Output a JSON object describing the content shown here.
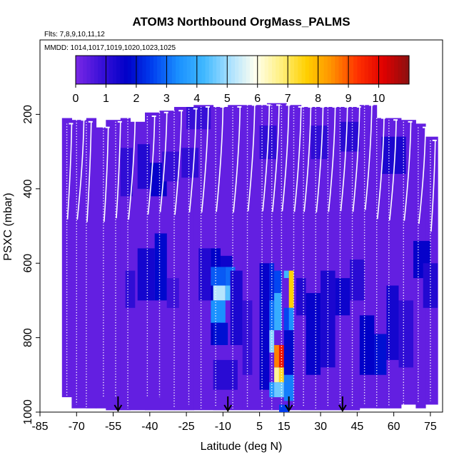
{
  "chart_data": {
    "type": "heatmap",
    "title": "ATOM3 Northbound OrgMass_PALMS",
    "flights_label": "Flts: 7,8,9,10,11,12",
    "dates_label": "MMDD: 1014,1017,1019,1020,1023,1025",
    "xlabel": "Latitude (deg N)",
    "ylabel": "PSXC (mbar)",
    "xlim": [
      -85,
      80
    ],
    "ylim": [
      1000,
      0
    ],
    "x_ticks": [
      -85,
      -70,
      -55,
      -40,
      -25,
      -10,
      5,
      15,
      30,
      45,
      60,
      75
    ],
    "y_ticks": [
      200,
      400,
      600,
      800,
      1000
    ],
    "colorbar": {
      "min": 0,
      "max": 11,
      "ticks": [
        0,
        1,
        2,
        3,
        4,
        5,
        6,
        7,
        8,
        9,
        10
      ],
      "colors": [
        "#7a28e6",
        "#3a10d8",
        "#0000c8",
        "#0040f0",
        "#1a90ff",
        "#40b8ff",
        "#a8e0ff",
        "#fffff0",
        "#fff080",
        "#ffd000",
        "#ff9000",
        "#ff3000",
        "#e00000",
        "#8a1010"
      ]
    },
    "background_value": 0.3,
    "cells": [
      {
        "x": [
          -52,
          -47
        ],
        "p": [
          290,
          420
        ],
        "v": 1.0
      },
      {
        "x": [
          -45,
          -40
        ],
        "p": [
          280,
          400
        ],
        "v": 1.2
      },
      {
        "x": [
          -40,
          -33
        ],
        "p": [
          330,
          420
        ],
        "v": 1.6
      },
      {
        "x": [
          -35,
          -28
        ],
        "p": [
          300,
          380
        ],
        "v": 0.9
      },
      {
        "x": [
          -27,
          -20
        ],
        "p": [
          290,
          370
        ],
        "v": 1.0
      },
      {
        "x": [
          -45,
          -38
        ],
        "p": [
          560,
          700
        ],
        "v": 1.4
      },
      {
        "x": [
          -38,
          -33
        ],
        "p": [
          520,
          700
        ],
        "v": 1.8
      },
      {
        "x": [
          -50,
          -46
        ],
        "p": [
          620,
          720
        ],
        "v": 1.0
      },
      {
        "x": [
          -33,
          -28
        ],
        "p": [
          640,
          720
        ],
        "v": 0.8
      },
      {
        "x": [
          -20,
          -15
        ],
        "p": [
          560,
          700
        ],
        "v": 1.2
      },
      {
        "x": [
          -15,
          -11
        ],
        "p": [
          560,
          820
        ],
        "v": 1.7
      },
      {
        "x": [
          -11,
          -6
        ],
        "p": [
          580,
          700
        ],
        "v": 1.5
      },
      {
        "x": [
          -14,
          -9
        ],
        "p": [
          660,
          700
        ],
        "v": 5.2
      },
      {
        "x": [
          -9,
          -6
        ],
        "p": [
          660,
          700
        ],
        "v": 4.4
      },
      {
        "x": [
          -15,
          -9
        ],
        "p": [
          700,
          760
        ],
        "v": 3.4
      },
      {
        "x": [
          -15,
          -9
        ],
        "p": [
          610,
          660
        ],
        "v": 2.8
      },
      {
        "x": [
          -9,
          -5
        ],
        "p": [
          610,
          660
        ],
        "v": 3.0
      },
      {
        "x": [
          -14,
          -8
        ],
        "p": [
          760,
          820
        ],
        "v": 1.9
      },
      {
        "x": [
          -7,
          -2
        ],
        "p": [
          620,
          820
        ],
        "v": 1.3
      },
      {
        "x": [
          -14,
          -4
        ],
        "p": [
          860,
          940
        ],
        "v": 1.1
      },
      {
        "x": [
          -2,
          2
        ],
        "p": [
          700,
          900
        ],
        "v": 0.9
      },
      {
        "x": [
          5,
          9
        ],
        "p": [
          600,
          940
        ],
        "v": 1.6
      },
      {
        "x": [
          9,
          11
        ],
        "p": [
          600,
          700
        ],
        "v": 2.2
      },
      {
        "x": [
          9,
          11
        ],
        "p": [
          700,
          780
        ],
        "v": 3.0
      },
      {
        "x": [
          11,
          14
        ],
        "p": [
          620,
          680
        ],
        "v": 2.6
      },
      {
        "x": [
          11,
          14
        ],
        "p": [
          680,
          780
        ],
        "v": 4.0
      },
      {
        "x": [
          9,
          11
        ],
        "p": [
          780,
          840
        ],
        "v": 4.8
      },
      {
        "x": [
          11,
          13
        ],
        "p": [
          820,
          880
        ],
        "v": 8.6
      },
      {
        "x": [
          13,
          15
        ],
        "p": [
          820,
          880
        ],
        "v": 9.8
      },
      {
        "x": [
          11,
          13
        ],
        "p": [
          880,
          920
        ],
        "v": 6.6
      },
      {
        "x": [
          13,
          15
        ],
        "p": [
          880,
          920
        ],
        "v": 7.4
      },
      {
        "x": [
          9,
          11
        ],
        "p": [
          920,
          960
        ],
        "v": 3.6
      },
      {
        "x": [
          11,
          15
        ],
        "p": [
          920,
          960
        ],
        "v": 4.6
      },
      {
        "x": [
          15,
          17
        ],
        "p": [
          620,
          640
        ],
        "v": 4.2
      },
      {
        "x": [
          17,
          19
        ],
        "p": [
          620,
          720
        ],
        "v": 7.6
      },
      {
        "x": [
          15,
          17
        ],
        "p": [
          720,
          780
        ],
        "v": 2.6
      },
      {
        "x": [
          17,
          19
        ],
        "p": [
          720,
          780
        ],
        "v": 3.4
      },
      {
        "x": [
          15,
          19
        ],
        "p": [
          780,
          900
        ],
        "v": 1.8
      },
      {
        "x": [
          15,
          19
        ],
        "p": [
          900,
          970
        ],
        "v": 3.2
      },
      {
        "x": [
          13,
          17
        ],
        "p": [
          980,
          1000
        ],
        "v": 2.5
      },
      {
        "x": [
          20,
          24
        ],
        "p": [
          640,
          740
        ],
        "v": 1.2
      },
      {
        "x": [
          24,
          30
        ],
        "p": [
          680,
          900
        ],
        "v": 1.6
      },
      {
        "x": [
          30,
          36
        ],
        "p": [
          620,
          880
        ],
        "v": 1.3
      },
      {
        "x": [
          36,
          42
        ],
        "p": [
          640,
          740
        ],
        "v": 1.5
      },
      {
        "x": [
          42,
          48
        ],
        "p": [
          590,
          700
        ],
        "v": 1.1
      },
      {
        "x": [
          46,
          52
        ],
        "p": [
          740,
          900
        ],
        "v": 1.7
      },
      {
        "x": [
          52,
          57
        ],
        "p": [
          790,
          900
        ],
        "v": 1.9
      },
      {
        "x": [
          57,
          62
        ],
        "p": [
          660,
          860
        ],
        "v": 1.4
      },
      {
        "x": [
          62,
          68
        ],
        "p": [
          700,
          880
        ],
        "v": 1.0
      },
      {
        "x": [
          68,
          75
        ],
        "p": [
          540,
          640
        ],
        "v": 1.6
      },
      {
        "x": [
          72,
          78
        ],
        "p": [
          600,
          720
        ],
        "v": 1.2
      },
      {
        "x": [
          26,
          33
        ],
        "p": [
          230,
          320
        ],
        "v": 1.0
      },
      {
        "x": [
          38,
          46
        ],
        "p": [
          220,
          300
        ],
        "v": 1.1
      },
      {
        "x": [
          55,
          65
        ],
        "p": [
          260,
          360
        ],
        "v": 1.3
      },
      {
        "x": [
          5,
          12
        ],
        "p": [
          230,
          320
        ],
        "v": 1.0
      },
      {
        "x": [
          -25,
          -15
        ],
        "p": [
          180,
          240
        ],
        "v": 0.9
      }
    ],
    "coverage": [
      {
        "x": [
          -76,
          -72
        ],
        "p": [
          210,
          960
        ]
      },
      {
        "x": [
          -72,
          -66
        ],
        "p": [
          215,
          990
        ]
      },
      {
        "x": [
          -66,
          -62
        ],
        "p": [
          210,
          990
        ]
      },
      {
        "x": [
          -62,
          -58
        ],
        "p": [
          235,
          990
        ]
      },
      {
        "x": [
          -58,
          -52
        ],
        "p": [
          215,
          995
        ]
      },
      {
        "x": [
          -52,
          -48
        ],
        "p": [
          210,
          995
        ]
      },
      {
        "x": [
          -48,
          -42
        ],
        "p": [
          220,
          995
        ]
      },
      {
        "x": [
          -42,
          -36
        ],
        "p": [
          195,
          995
        ]
      },
      {
        "x": [
          -36,
          -30
        ],
        "p": [
          190,
          995
        ]
      },
      {
        "x": [
          -30,
          -22
        ],
        "p": [
          180,
          995
        ]
      },
      {
        "x": [
          -22,
          -14
        ],
        "p": [
          175,
          995
        ]
      },
      {
        "x": [
          -14,
          -8
        ],
        "p": [
          180,
          995
        ]
      },
      {
        "x": [
          -8,
          -2
        ],
        "p": [
          175,
          995
        ]
      },
      {
        "x": [
          -2,
          8
        ],
        "p": [
          175,
          995
        ]
      },
      {
        "x": [
          8,
          16
        ],
        "p": [
          170,
          995
        ]
      },
      {
        "x": [
          16,
          22
        ],
        "p": [
          175,
          995
        ]
      },
      {
        "x": [
          22,
          30
        ],
        "p": [
          180,
          995
        ]
      },
      {
        "x": [
          30,
          38
        ],
        "p": [
          180,
          995
        ]
      },
      {
        "x": [
          38,
          46
        ],
        "p": [
          180,
          995
        ]
      },
      {
        "x": [
          46,
          53
        ],
        "p": [
          175,
          990
        ]
      },
      {
        "x": [
          53,
          57
        ],
        "p": [
          210,
          990
        ]
      },
      {
        "x": [
          57,
          63
        ],
        "p": [
          210,
          990
        ]
      },
      {
        "x": [
          63,
          69
        ],
        "p": [
          215,
          980
        ]
      },
      {
        "x": [
          69,
          73
        ],
        "p": [
          225,
          990
        ]
      },
      {
        "x": [
          73,
          78
        ],
        "p": [
          260,
          980
        ]
      }
    ],
    "profiles": [
      {
        "x": [
          -74,
          -72
        ],
        "p": [
          225,
          960
        ]
      },
      {
        "x": [
          -70,
          -67
        ],
        "p": [
          215,
          980
        ]
      },
      {
        "x": [
          -66,
          -64
        ],
        "p": [
          220,
          990
        ]
      },
      {
        "x": [
          -59,
          -57
        ],
        "p": [
          235,
          960
        ]
      },
      {
        "x": [
          -54,
          -52
        ],
        "p": [
          220,
          960
        ]
      },
      {
        "x": [
          -49,
          -46
        ],
        "p": [
          210,
          990
        ]
      },
      {
        "x": [
          -41,
          -38
        ],
        "p": [
          205,
          960
        ]
      },
      {
        "x": [
          -36,
          -33
        ],
        "p": [
          195,
          960
        ]
      },
      {
        "x": [
          -30,
          -27
        ],
        "p": [
          190,
          990
        ]
      },
      {
        "x": [
          -24,
          -21
        ],
        "p": [
          185,
          980
        ]
      },
      {
        "x": [
          -19,
          -16
        ],
        "p": [
          180,
          990
        ]
      },
      {
        "x": [
          -13,
          -10
        ],
        "p": [
          180,
          985
        ]
      },
      {
        "x": [
          -6,
          -3
        ],
        "p": [
          180,
          990
        ]
      },
      {
        "x": [
          0,
          3
        ],
        "p": [
          175,
          990
        ]
      },
      {
        "x": [
          6,
          9
        ],
        "p": [
          175,
          990
        ]
      },
      {
        "x": [
          10,
          13
        ],
        "p": [
          175,
          995
        ]
      },
      {
        "x": [
          14,
          17
        ],
        "p": [
          175,
          990
        ]
      },
      {
        "x": [
          19,
          22
        ],
        "p": [
          180,
          985
        ]
      },
      {
        "x": [
          23,
          26
        ],
        "p": [
          180,
          985
        ]
      },
      {
        "x": [
          28,
          31
        ],
        "p": [
          180,
          990
        ]
      },
      {
        "x": [
          33,
          36
        ],
        "p": [
          180,
          985
        ]
      },
      {
        "x": [
          38,
          41
        ],
        "p": [
          180,
          980
        ]
      },
      {
        "x": [
          43,
          46
        ],
        "p": [
          180,
          985
        ]
      },
      {
        "x": [
          48,
          51
        ],
        "p": [
          175,
          980
        ]
      },
      {
        "x": [
          53,
          56
        ],
        "p": [
          210,
          985
        ]
      },
      {
        "x": [
          58,
          61
        ],
        "p": [
          215,
          985
        ]
      },
      {
        "x": [
          64,
          67
        ],
        "p": [
          220,
          980
        ]
      },
      {
        "x": [
          70,
          73
        ],
        "p": [
          235,
          975
        ]
      },
      {
        "x": [
          75,
          77
        ],
        "p": [
          270,
          970
        ]
      }
    ],
    "arrows": [
      -53,
      -8,
      17,
      39
    ]
  }
}
